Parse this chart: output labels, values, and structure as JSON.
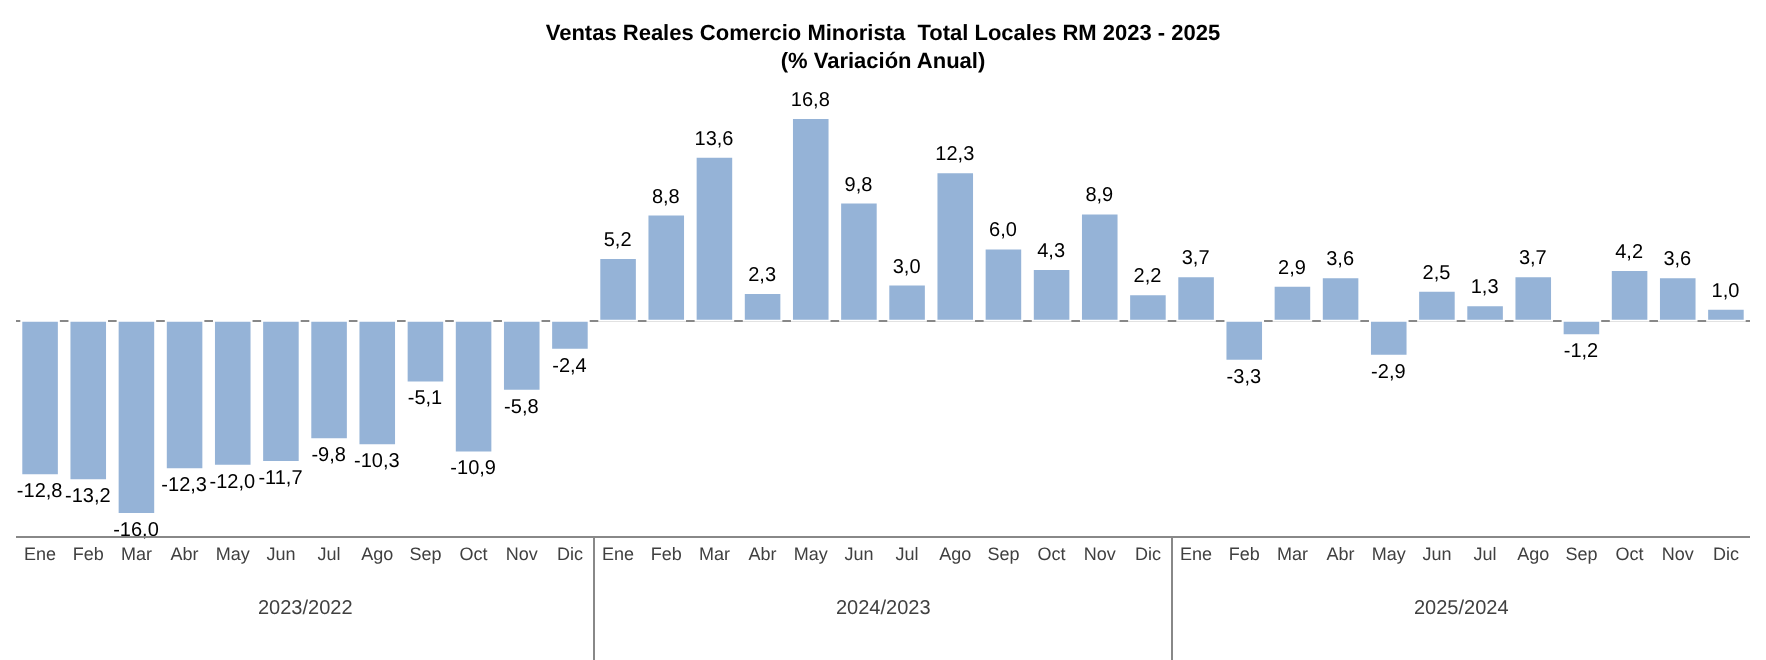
{
  "chart_data": {
    "type": "bar",
    "title": "Ventas Reales Comercio Minorista  Total Locales RM 2023 - 2025",
    "subtitle": "(% Variación Anual)",
    "categories": [
      "Ene",
      "Feb",
      "Mar",
      "Abr",
      "May",
      "Jun",
      "Jul",
      "Ago",
      "Sep",
      "Oct",
      "Nov",
      "Dic",
      "Ene",
      "Feb",
      "Mar",
      "Abr",
      "May",
      "Jun",
      "Jul",
      "Ago",
      "Sep",
      "Oct",
      "Nov",
      "Dic",
      "Ene",
      "Feb",
      "Mar",
      "Abr",
      "May",
      "Jun",
      "Jul",
      "Ago",
      "Sep",
      "Oct",
      "Nov",
      "Dic"
    ],
    "values": [
      -12.8,
      -13.2,
      -16.0,
      -12.3,
      -12.0,
      -11.7,
      -9.8,
      -10.3,
      -5.1,
      -10.9,
      -5.8,
      -2.4,
      5.2,
      8.8,
      13.6,
      2.3,
      16.8,
      9.8,
      3.0,
      12.3,
      6.0,
      4.3,
      8.9,
      2.2,
      3.7,
      -3.3,
      2.9,
      3.6,
      -2.9,
      2.5,
      1.3,
      3.7,
      -1.2,
      4.2,
      3.6,
      1.0
    ],
    "value_labels": [
      "-12,8",
      "-13,2",
      "-16,0",
      "-12,3",
      "-12,0",
      "-11,7",
      "-9,8",
      "-10,3",
      "-5,1",
      "-10,9",
      "-5,8",
      "-2,4",
      "5,2",
      "8,8",
      "13,6",
      "2,3",
      "16,8",
      "9,8",
      "3,0",
      "12,3",
      "6,0",
      "4,3",
      "8,9",
      "2,2",
      "3,7",
      "-3,3",
      "2,9",
      "3,6",
      "-2,9",
      "2,5",
      "1,3",
      "3,7",
      "-1,2",
      "4,2",
      "3,6",
      "1,0"
    ],
    "color": "#95b3d7",
    "annotations": [
      "2023/2022",
      "2024/2023",
      "2025/2024"
    ],
    "tick_labels": "x",
    "legend": false
  }
}
